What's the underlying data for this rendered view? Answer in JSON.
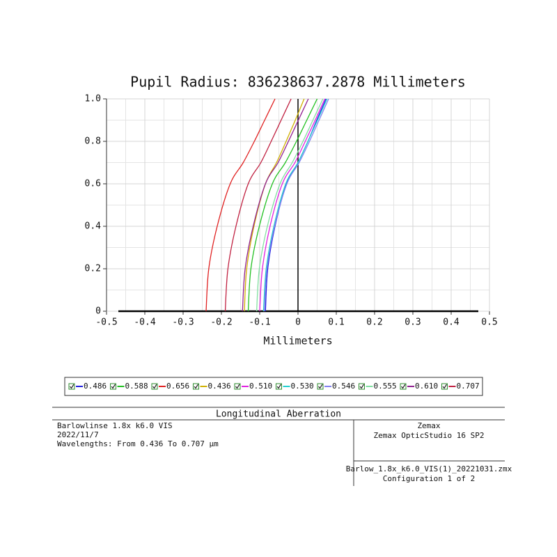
{
  "chart_data": {
    "type": "line",
    "title": "Pupil Radius: 836238637.2878 Millimeters",
    "xlabel": "Millimeters",
    "xlim": [
      -0.5,
      0.5
    ],
    "xticks": [
      -0.5,
      -0.4,
      -0.3,
      -0.2,
      -0.1,
      0,
      0.1,
      0.2,
      0.3,
      0.4,
      0.5
    ],
    "ylim": [
      0,
      1
    ],
    "yticks": [
      0,
      0.2,
      0.4,
      0.6,
      0.8,
      {
        "value": 1,
        "label": "1.0"
      }
    ],
    "grid": true,
    "y": [
      0,
      0.2,
      0.4,
      0.6,
      0.7,
      0.8,
      0.9,
      1.0
    ],
    "series": [
      {
        "name": "0.486",
        "color": "#2020e0",
        "x": [
          -0.085,
          -0.079,
          -0.06,
          -0.03,
          0.0,
          0.026,
          0.049,
          0.073
        ]
      },
      {
        "name": "0.588",
        "color": "#20c020",
        "x": [
          -0.13,
          -0.123,
          -0.101,
          -0.067,
          -0.033,
          -0.004,
          0.023,
          0.05
        ]
      },
      {
        "name": "0.656",
        "color": "#e02020",
        "x": [
          -0.24,
          -0.233,
          -0.211,
          -0.177,
          -0.143,
          -0.114,
          -0.087,
          -0.06
        ]
      },
      {
        "name": "0.436",
        "color": "#d0b000",
        "x": [
          -0.14,
          -0.134,
          -0.115,
          -0.085,
          -0.056,
          -0.031,
          -0.007,
          0.016
        ]
      },
      {
        "name": "0.510",
        "color": "#e020e0",
        "x": [
          -0.1,
          -0.093,
          -0.073,
          -0.041,
          -0.008,
          0.019,
          0.045,
          0.07
        ]
      },
      {
        "name": "0.530",
        "color": "#20d0d0",
        "x": [
          -0.09,
          -0.083,
          -0.063,
          -0.032,
          0.0,
          0.026,
          0.051,
          0.076
        ]
      },
      {
        "name": "0.546",
        "color": "#8080f0",
        "x": [
          -0.088,
          -0.081,
          -0.061,
          -0.029,
          0.003,
          0.03,
          0.055,
          0.08
        ]
      },
      {
        "name": "0.555",
        "color": "#80e0a0",
        "x": [
          -0.108,
          -0.101,
          -0.08,
          -0.047,
          -0.015,
          0.013,
          0.039,
          0.065
        ]
      },
      {
        "name": "0.610",
        "color": "#902090",
        "x": [
          -0.145,
          -0.138,
          -0.117,
          -0.085,
          -0.052,
          -0.025,
          0.001,
          0.027
        ]
      },
      {
        "name": "0.707",
        "color": "#c02040",
        "x": [
          -0.19,
          -0.183,
          -0.162,
          -0.13,
          -0.097,
          -0.07,
          -0.044,
          -0.018
        ]
      }
    ]
  },
  "footer": {
    "title": "Longitudinal Aberration",
    "left": [
      "Barlowlinse 1.8x k6.0 VIS",
      "2022/11/7",
      "Wavelengths: From 0.436 To 0.707 µm"
    ],
    "right_top": [
      "Zemax",
      "Zemax OpticStudio 16 SP2"
    ],
    "right_bottom": [
      "Barlow_1.8x_k6.0_VIS(1)_20221031.zmx",
      "Configuration 1 of 2"
    ]
  }
}
